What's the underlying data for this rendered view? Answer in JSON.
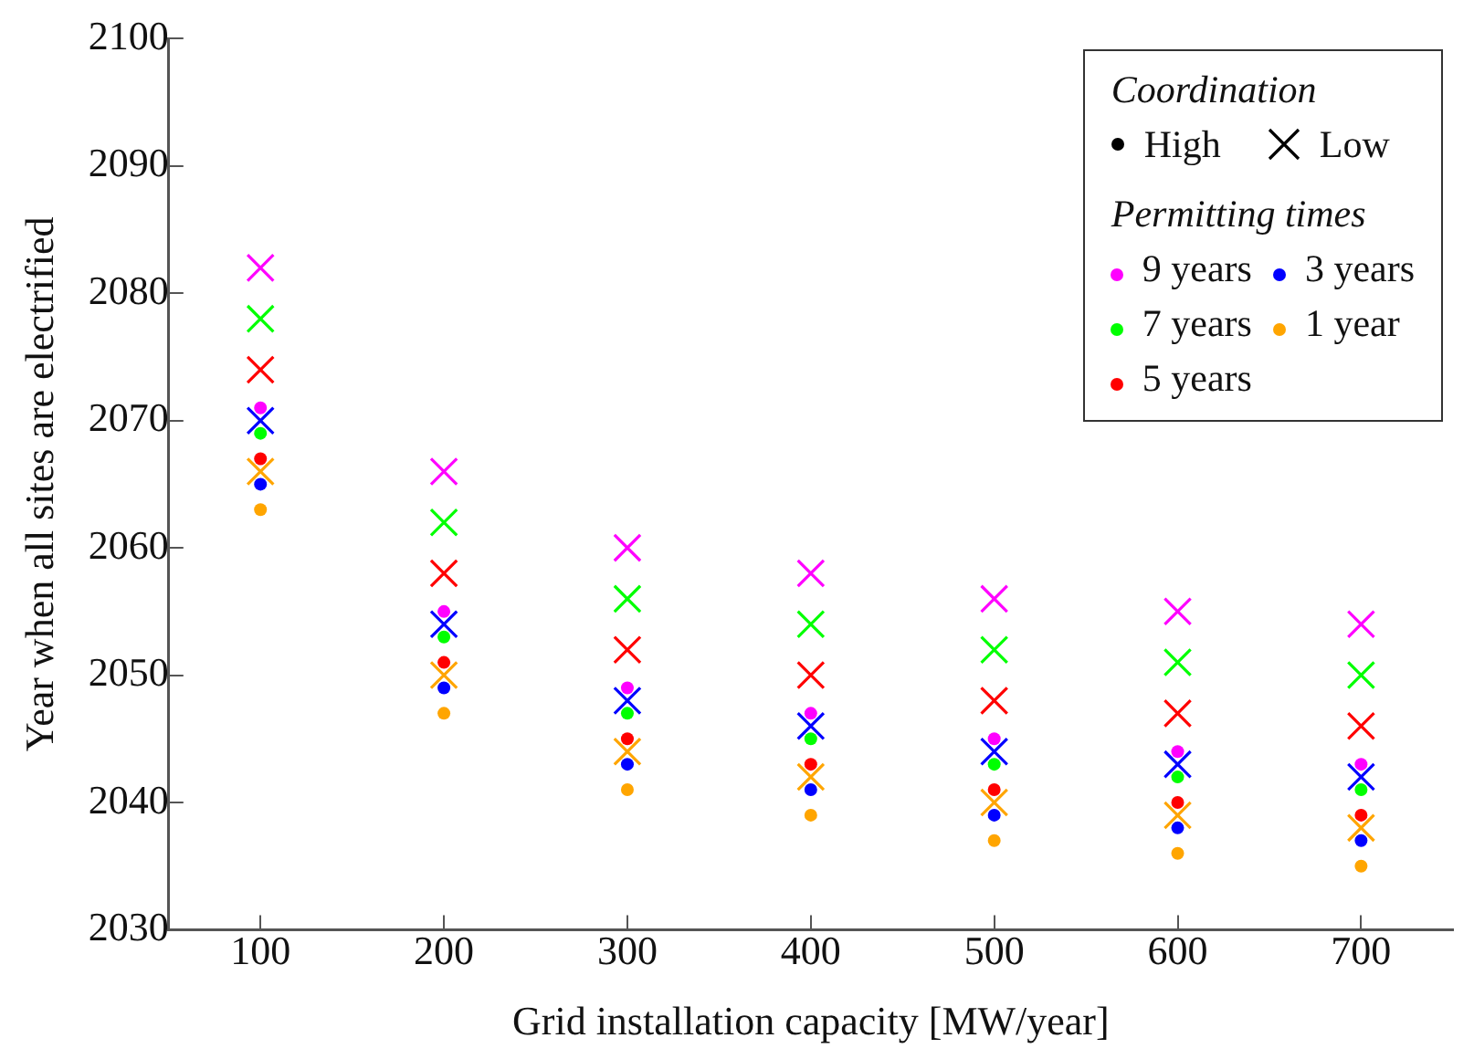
{
  "chart_data": {
    "type": "scatter",
    "xlabel": "Grid installation capacity [MW/year]",
    "ylabel": "Year when all sites are electrified",
    "legend_title": "Permitting times",
    "annotations": [
      "Coordination",
      "High",
      "Low"
    ],
    "x": [
      100,
      200,
      300,
      400,
      500,
      600,
      700
    ],
    "xlim": [
      50,
      750
    ],
    "xticks": [
      100,
      200,
      300,
      400,
      500,
      600,
      700
    ],
    "ylim": [
      2030,
      2100
    ],
    "yticks": [
      2030,
      2040,
      2050,
      2060,
      2070,
      2080,
      2090,
      2100
    ],
    "grid": false,
    "legend": "top right",
    "series": [
      {
        "name": "9 years",
        "color": "#ff00ff",
        "marker": "circle",
        "values": [
          2071,
          2055,
          2049,
          2047,
          2045,
          2044,
          2043
        ]
      },
      {
        "name": "7 years",
        "color": "#00ff00",
        "marker": "circle",
        "values": [
          2069,
          2053,
          2047,
          2045,
          2043,
          2042,
          2041
        ]
      },
      {
        "name": "5 years",
        "color": "#ff0000",
        "marker": "circle",
        "values": [
          2067,
          2051,
          2045,
          2043,
          2041,
          2040,
          2039
        ]
      },
      {
        "name": "3 years",
        "color": "#0000ff",
        "marker": "circle",
        "values": [
          2065,
          2049,
          2043,
          2041,
          2039,
          2038,
          2037
        ]
      },
      {
        "name": "1 year",
        "color": "#ffa500",
        "marker": "circle",
        "values": [
          2063,
          2047,
          2041,
          2039,
          2037,
          2036,
          2035
        ]
      },
      {
        "color": "#ff00ff",
        "marker": "cross",
        "values": [
          2082,
          2066,
          2060,
          2058,
          2056,
          2055,
          2054
        ]
      },
      {
        "color": "#00ff00",
        "marker": "cross",
        "values": [
          2078,
          2062,
          2056,
          2054,
          2052,
          2051,
          2050
        ]
      },
      {
        "color": "#ff0000",
        "marker": "cross",
        "values": [
          2074,
          2058,
          2052,
          2050,
          2048,
          2047,
          2046
        ]
      },
      {
        "color": "#0000ff",
        "marker": "cross",
        "values": [
          2070,
          2054,
          2048,
          2046,
          2044,
          2043,
          2042
        ]
      },
      {
        "color": "#ffa500",
        "marker": "cross",
        "values": [
          2066,
          2050,
          2044,
          2042,
          2040,
          2039,
          2038
        ]
      }
    ]
  }
}
